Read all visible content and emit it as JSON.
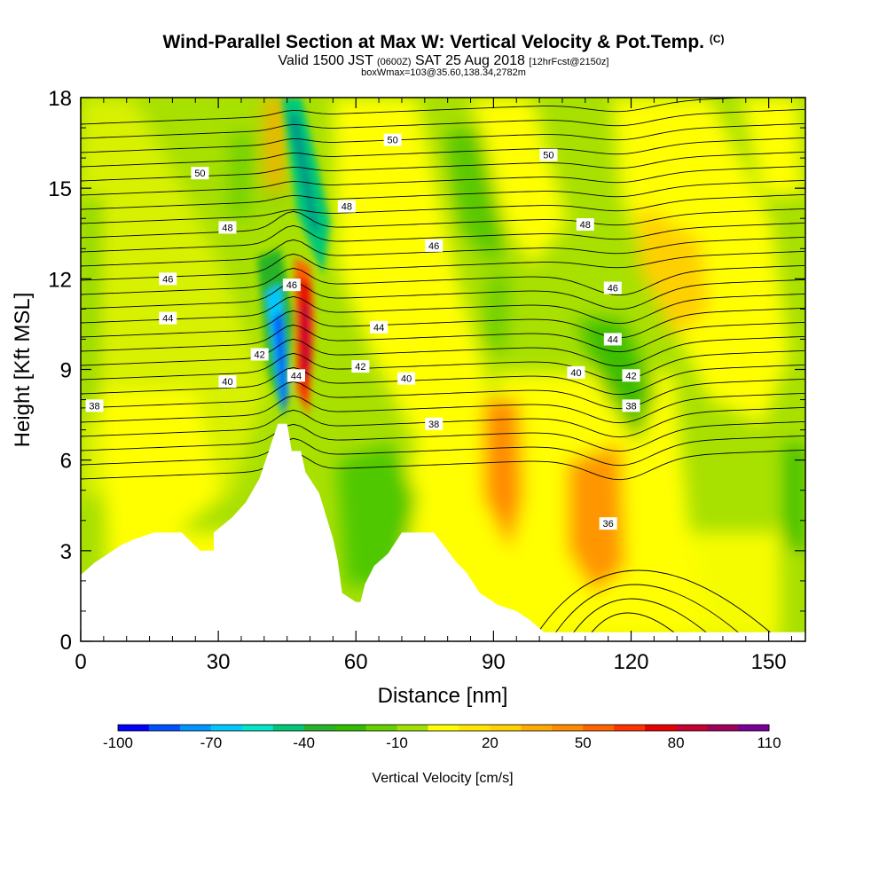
{
  "title": {
    "main": "Wind-Parallel Section at Max W: Vertical Velocity & Pot.Temp.",
    "copyright": "(C)",
    "valid_prefix": "Valid 1500 JST",
    "utc": "(0600Z)",
    "date": "SAT 25 Aug 2018",
    "forecast": "[12hrFcst@2150z]",
    "box_info": "boxWmax=103@35.60,138.34,2782m"
  },
  "chart_data": {
    "type": "contour-filled cross section",
    "xlabel": "Distance [nm]",
    "ylabel": "Height [Kft MSL]",
    "xlim": [
      0,
      158
    ],
    "ylim": [
      0,
      18
    ],
    "x_ticks": [
      0,
      30,
      60,
      90,
      120,
      150
    ],
    "y_ticks": [
      0,
      3,
      6,
      9,
      12,
      15,
      18
    ],
    "colorbar": {
      "label": "Vertical Velocity [cm/s]",
      "tick_labels": [
        "-100",
        "-70",
        "-40",
        "-10",
        "20",
        "50",
        "80",
        "110"
      ],
      "levels": [
        -100,
        -90,
        -80,
        -70,
        -60,
        -50,
        -40,
        -30,
        -20,
        -10,
        0,
        10,
        20,
        30,
        40,
        50,
        60,
        70,
        80,
        90,
        100,
        110
      ],
      "colors": [
        "#0000ff",
        "#0050ff",
        "#0096ff",
        "#00c8ff",
        "#00e6c8",
        "#00c878",
        "#28b428",
        "#32be00",
        "#64d200",
        "#a0e100",
        "#ffff00",
        "#ffe600",
        "#ffd200",
        "#ffaa00",
        "#ff8c00",
        "#ff6400",
        "#ff3200",
        "#e60000",
        "#c80032",
        "#a0005a",
        "#780096"
      ]
    },
    "theta_contour_labels": [
      {
        "text": "50",
        "x": 26,
        "y": 15.5
      },
      {
        "text": "50",
        "x": 68,
        "y": 16.6
      },
      {
        "text": "50",
        "x": 102,
        "y": 16.1
      },
      {
        "text": "48",
        "x": 32,
        "y": 13.7
      },
      {
        "text": "48",
        "x": 58,
        "y": 14.4
      },
      {
        "text": "48",
        "x": 110,
        "y": 13.8
      },
      {
        "text": "46",
        "x": 19,
        "y": 12.0
      },
      {
        "text": "46",
        "x": 46,
        "y": 11.8
      },
      {
        "text": "46",
        "x": 77,
        "y": 13.1
      },
      {
        "text": "46",
        "x": 116,
        "y": 11.7
      },
      {
        "text": "44",
        "x": 19,
        "y": 10.7
      },
      {
        "text": "44",
        "x": 65,
        "y": 10.4
      },
      {
        "text": "44",
        "x": 116,
        "y": 10.0
      },
      {
        "text": "44",
        "x": 47,
        "y": 8.8
      },
      {
        "text": "42",
        "x": 39,
        "y": 9.5
      },
      {
        "text": "42",
        "x": 61,
        "y": 9.1
      },
      {
        "text": "42",
        "x": 120,
        "y": 8.8
      },
      {
        "text": "40",
        "x": 32,
        "y": 8.6
      },
      {
        "text": "40",
        "x": 71,
        "y": 8.7
      },
      {
        "text": "40",
        "x": 108,
        "y": 8.9
      },
      {
        "text": "38",
        "x": 3,
        "y": 7.8
      },
      {
        "text": "38",
        "x": 77,
        "y": 7.2
      },
      {
        "text": "38",
        "x": 120,
        "y": 7.8
      },
      {
        "text": "36",
        "x": 115,
        "y": 3.9
      }
    ],
    "terrain_profile_kft": [
      [
        0,
        2.2
      ],
      [
        3,
        2.6
      ],
      [
        6,
        2.9
      ],
      [
        9,
        3.2
      ],
      [
        12,
        3.4
      ],
      [
        16,
        3.6
      ],
      [
        22,
        3.6
      ],
      [
        26,
        3.0
      ],
      [
        29,
        3.0
      ],
      [
        29,
        3.6
      ],
      [
        33,
        4.1
      ],
      [
        36,
        4.6
      ],
      [
        39,
        5.4
      ],
      [
        41,
        6.3
      ],
      [
        43,
        7.2
      ],
      [
        45,
        7.2
      ],
      [
        46,
        6.3
      ],
      [
        48,
        6.3
      ],
      [
        49,
        5.6
      ],
      [
        52,
        4.9
      ],
      [
        55,
        3.4
      ],
      [
        56,
        2.7
      ],
      [
        57,
        1.6
      ],
      [
        60,
        1.3
      ],
      [
        61,
        1.3
      ],
      [
        62,
        1.9
      ],
      [
        64,
        2.5
      ],
      [
        67,
        2.9
      ],
      [
        70,
        3.6
      ],
      [
        77,
        3.6
      ],
      [
        80,
        3.0
      ],
      [
        82,
        2.6
      ],
      [
        84,
        2.3
      ],
      [
        87,
        1.6
      ],
      [
        91,
        1.2
      ],
      [
        95,
        1.0
      ],
      [
        98,
        0.7
      ],
      [
        101,
        0.3
      ],
      [
        158,
        0.3
      ]
    ]
  }
}
